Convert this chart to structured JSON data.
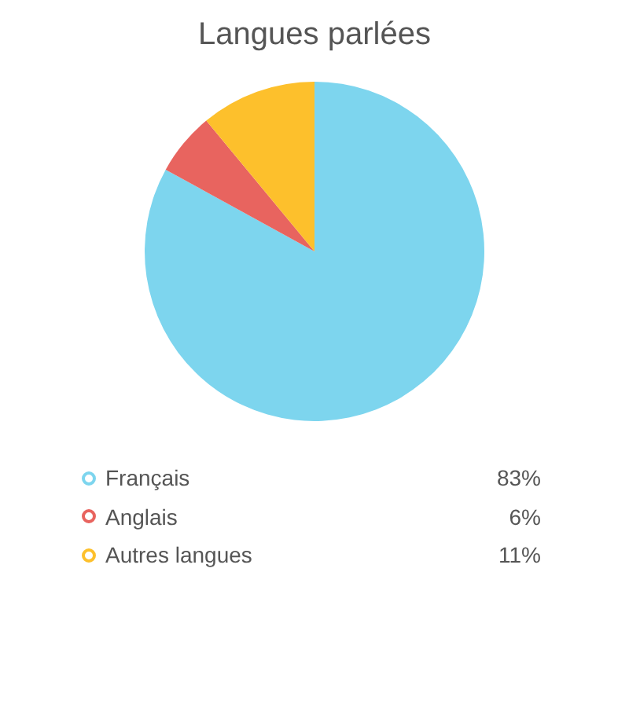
{
  "chart_data": {
    "type": "pie",
    "title": "Langues parlées",
    "categories": [
      "Français",
      "Anglais",
      "Autres langues"
    ],
    "values": [
      83,
      6,
      11
    ],
    "colors": [
      "#7dd5ee",
      "#e8645f",
      "#fdc02c"
    ],
    "value_labels": [
      "83%",
      "6%",
      "11%"
    ],
    "legend": "bottom"
  }
}
